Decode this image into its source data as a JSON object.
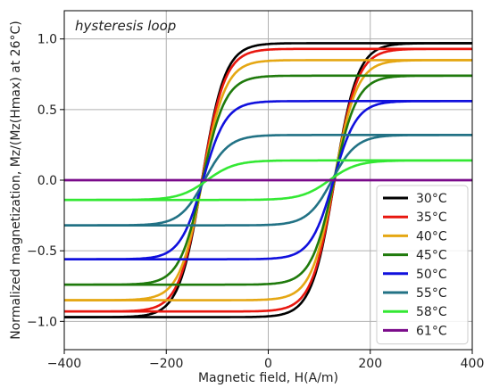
{
  "chart_data": {
    "type": "line",
    "title": "",
    "annotation": "hysteresis loop",
    "xlabel": "Magnetic field, H(A/m)",
    "ylabel": "Normalized magnetization, Mz/(Mz(Hmax) at 26°C)",
    "xlim": [
      -400,
      400
    ],
    "ylim": [
      -1.2,
      1.2
    ],
    "xticks": [
      -400,
      -200,
      0,
      200,
      400
    ],
    "xtick_labels": [
      "−400",
      "−200",
      "0",
      "200",
      "400"
    ],
    "yticks": [
      -1.0,
      -0.5,
      0.0,
      0.5,
      1.0
    ],
    "ytick_labels": [
      "−1.0",
      "−0.5",
      "0.0",
      "0.5",
      "1.0"
    ],
    "grid": true,
    "legend_position": "lower-right",
    "series": [
      {
        "name": "30°C",
        "color": "#000000",
        "ms": 0.97,
        "coercive_field": 130,
        "transition_width": 45
      },
      {
        "name": "35°C",
        "color": "#e8170f",
        "ms": 0.93,
        "coercive_field": 130,
        "transition_width": 45
      },
      {
        "name": "40°C",
        "color": "#e5a713",
        "ms": 0.85,
        "coercive_field": 129,
        "transition_width": 45
      },
      {
        "name": "45°C",
        "color": "#1f7a0c",
        "ms": 0.74,
        "coercive_field": 129,
        "transition_width": 45
      },
      {
        "name": "50°C",
        "color": "#1010dd",
        "ms": 0.56,
        "coercive_field": 128,
        "transition_width": 45
      },
      {
        "name": "55°C",
        "color": "#227285",
        "ms": 0.32,
        "coercive_field": 125,
        "transition_width": 48
      },
      {
        "name": "58°C",
        "color": "#33e833",
        "ms": 0.14,
        "coercive_field": 120,
        "transition_width": 55
      },
      {
        "name": "61°C",
        "color": "#7a0a8a",
        "ms": 0.0,
        "coercive_field": 0,
        "transition_width": 1
      }
    ]
  }
}
